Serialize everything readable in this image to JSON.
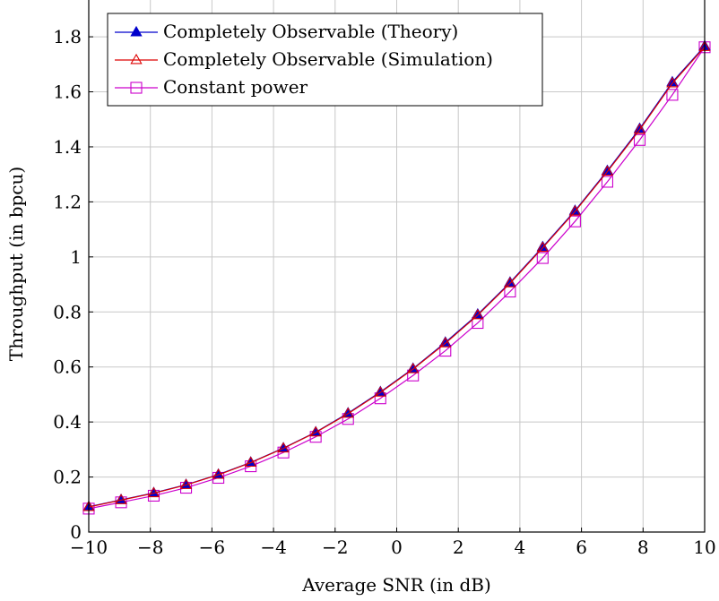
{
  "chart_data": {
    "type": "line",
    "xlabel": "Average SNR (in dB)",
    "ylabel": "Throughput (in bpcu)",
    "xlim": [
      -10,
      10
    ],
    "ylim": [
      0,
      1.95
    ],
    "xticks": [
      -10,
      -8,
      -6,
      -4,
      -2,
      0,
      2,
      4,
      6,
      8,
      10
    ],
    "xtick_labels": [
      "−10",
      "−8",
      "−6",
      "−4",
      "−2",
      "0",
      "2",
      "4",
      "6",
      "8",
      "10"
    ],
    "yticks": [
      0,
      0.2,
      0.4,
      0.6,
      0.8,
      1,
      1.2,
      1.4,
      1.6,
      1.8
    ],
    "ytick_labels": [
      "0",
      "0.2",
      "0.4",
      "0.6",
      "0.8",
      "1",
      "1.2",
      "1.4",
      "1.6",
      "1.8"
    ],
    "grid": true,
    "legend_position": "top-left",
    "x": [
      -10,
      -8.95,
      -7.89,
      -6.84,
      -5.79,
      -4.74,
      -3.68,
      -2.63,
      -1.58,
      -0.53,
      0.53,
      1.58,
      2.63,
      3.68,
      4.74,
      5.79,
      6.84,
      7.89,
      8.95,
      10
    ],
    "series": [
      {
        "name": "Completely Observable (Theory)",
        "color": "#0000cc",
        "marker": "filled-triangle",
        "values": [
          0.092,
          0.117,
          0.142,
          0.172,
          0.209,
          0.253,
          0.305,
          0.363,
          0.432,
          0.509,
          0.594,
          0.689,
          0.791,
          0.907,
          1.036,
          1.168,
          1.313,
          1.466,
          1.635,
          1.766
        ]
      },
      {
        "name": "Completely Observable (Simulation)",
        "color": "#dd0000",
        "marker": "open-triangle",
        "values": [
          0.091,
          0.116,
          0.141,
          0.171,
          0.208,
          0.252,
          0.304,
          0.362,
          0.43,
          0.507,
          0.592,
          0.686,
          0.788,
          0.904,
          1.033,
          1.165,
          1.31,
          1.462,
          1.631,
          1.763
        ]
      },
      {
        "name": "Constant power",
        "color": "#cc00cc",
        "marker": "open-square",
        "values": [
          0.085,
          0.108,
          0.132,
          0.161,
          0.197,
          0.239,
          0.289,
          0.346,
          0.411,
          0.486,
          0.569,
          0.659,
          0.76,
          0.874,
          0.996,
          1.129,
          1.273,
          1.425,
          1.589,
          1.762
        ]
      }
    ]
  }
}
